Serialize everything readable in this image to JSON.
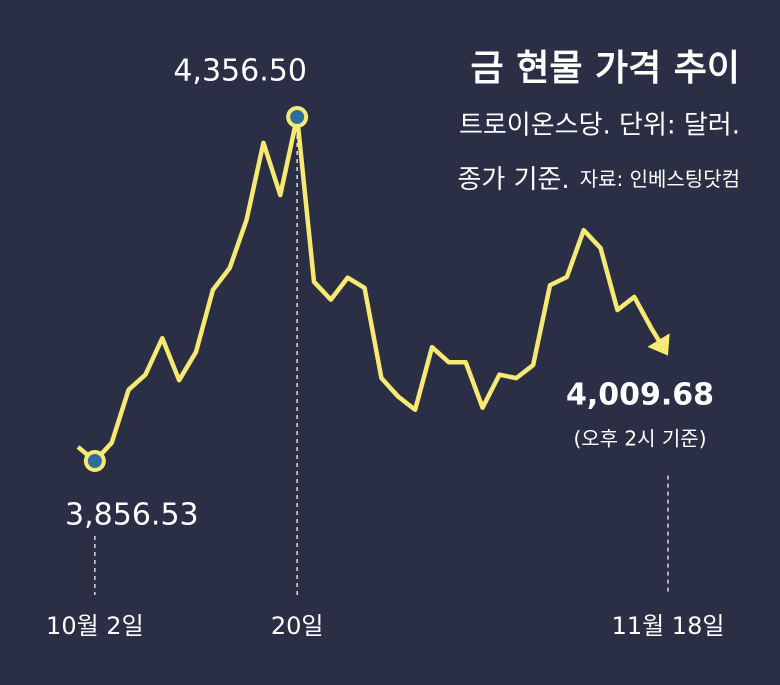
{
  "chart_data": {
    "type": "line",
    "title": "금 현물 가격 추이",
    "subtitle": "트로이온스당. 단위: 달러.",
    "subtitle2": "종가 기준.",
    "source": "자료: 인베스팅닷컴",
    "annotation": "(오후 2시 기준)",
    "color": "#f6ea72",
    "marker_color": "#2c6f9e",
    "categories": [
      null,
      "10월 2일",
      null,
      null,
      null,
      null,
      null,
      null,
      null,
      null,
      null,
      null,
      null,
      "20일",
      null,
      null,
      null,
      null,
      null,
      null,
      null,
      null,
      null,
      null,
      null,
      null,
      null,
      null,
      null,
      null,
      null,
      null,
      null,
      null,
      null,
      "11월 18일"
    ],
    "values": [
      3877,
      3856.53,
      3883,
      3960,
      3982,
      4035,
      3974,
      4015,
      4105,
      4137,
      4207,
      4319,
      4243,
      4356.5,
      4117,
      4091,
      4123,
      4108,
      3977,
      3950,
      3931,
      4022,
      4000,
      4000,
      3934,
      3982,
      3977,
      3996,
      4112,
      4124,
      4192,
      4166,
      4076,
      4095,
      4050,
      4009.68
    ],
    "value_labels": [
      null,
      "3,856.53",
      null,
      null,
      null,
      null,
      null,
      null,
      null,
      null,
      null,
      null,
      null,
      "4,356.50",
      null,
      null,
      null,
      null,
      null,
      null,
      null,
      null,
      null,
      null,
      null,
      null,
      null,
      null,
      null,
      null,
      null,
      null,
      null,
      null,
      null,
      "4,009.68"
    ]
  }
}
